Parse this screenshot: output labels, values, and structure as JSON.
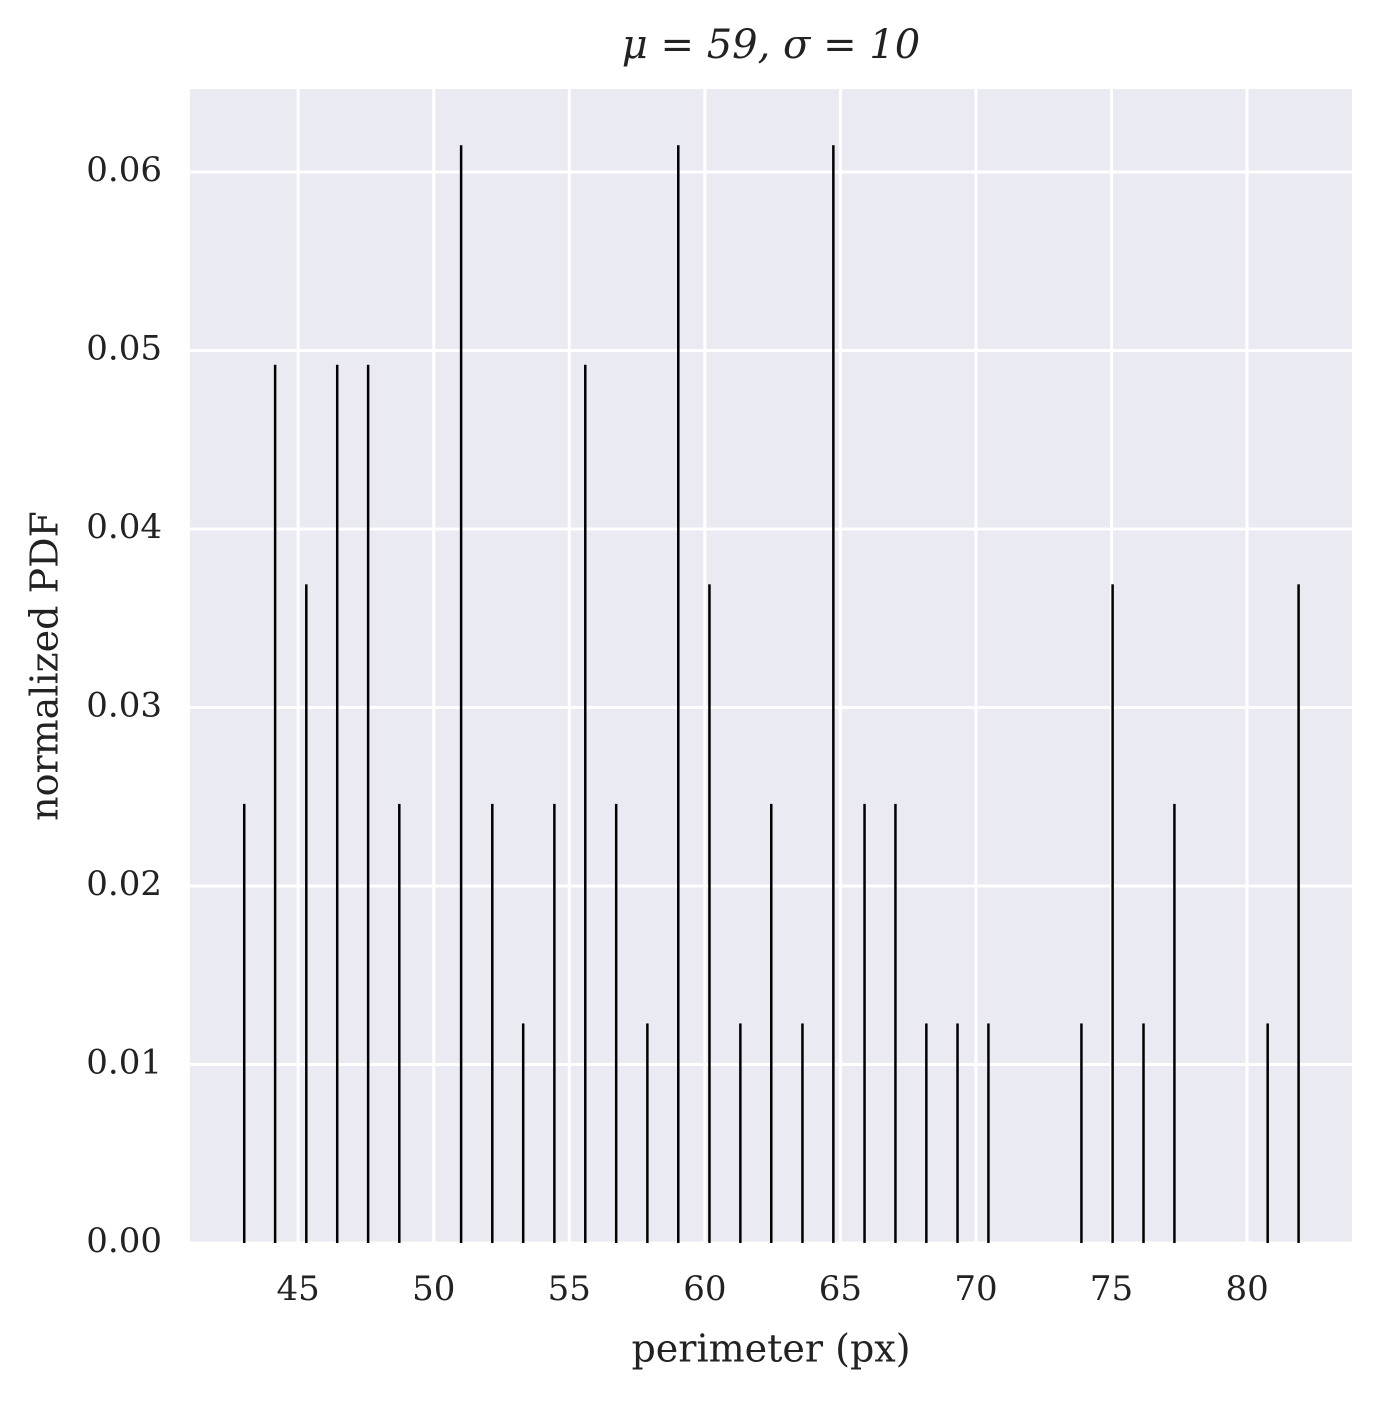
{
  "chart_data": {
    "type": "bar",
    "title": "μ = 59, σ = 10",
    "x_label": "perimeter (px)",
    "y_label": "normalized PDF",
    "x": [
      43.01,
      44.15,
      45.3,
      46.44,
      47.58,
      48.73,
      51.01,
      52.16,
      53.3,
      54.45,
      55.59,
      56.73,
      57.88,
      59.02,
      60.17,
      61.31,
      62.45,
      63.6,
      64.74,
      65.89,
      67.03,
      68.17,
      69.32,
      70.46,
      73.89,
      75.04,
      76.18,
      77.32,
      80.76,
      81.9
    ],
    "values": [
      0.0246,
      0.0492,
      0.0369,
      0.0492,
      0.0492,
      0.0246,
      0.0615,
      0.0246,
      0.0123,
      0.0246,
      0.0492,
      0.0246,
      0.0123,
      0.0615,
      0.0369,
      0.0123,
      0.0246,
      0.0123,
      0.0615,
      0.0246,
      0.0246,
      0.0123,
      0.0123,
      0.0123,
      0.0123,
      0.0369,
      0.0123,
      0.0246,
      0.0123,
      0.0369
    ],
    "color": "#000000",
    "xlim": [
      41.01,
      83.87
    ],
    "ylim": [
      0,
      0.06465
    ],
    "xticks": [
      45,
      50,
      55,
      60,
      65,
      70,
      75,
      80
    ],
    "yticks": [
      {
        "value": 0,
        "label": "0.00"
      },
      0.01,
      0.02,
      0.03,
      0.04,
      0.05,
      0.06
    ],
    "grid": true
  }
}
